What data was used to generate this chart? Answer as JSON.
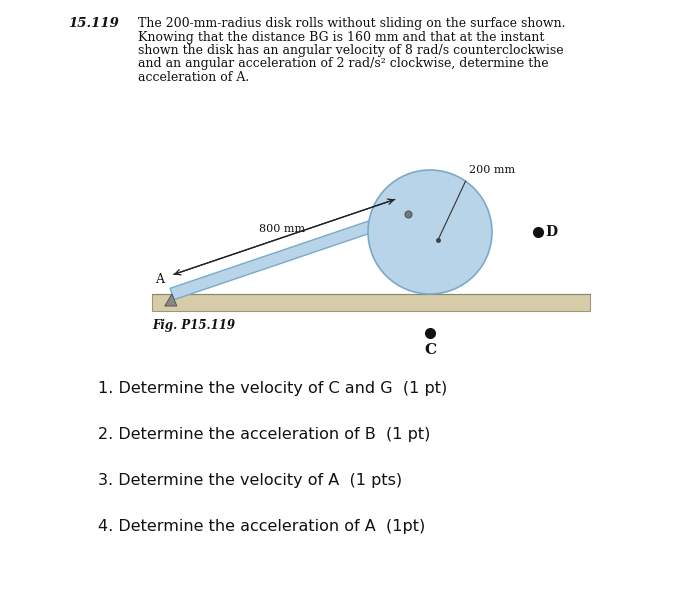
{
  "bg_color": "#ffffff",
  "fig_width": 7.0,
  "fig_height": 5.96,
  "problem_number": "15.119",
  "problem_text_lines": [
    "The 200-mm-radius disk rolls without sliding on the surface shown.",
    "Knowing that the distance BG is 160 mm and that at the instant",
    "shown the disk has an angular velocity of 8 rad/s counterclockwise",
    "and an angular acceleration of 2 rad/s² clockwise, determine the",
    "acceleration of A."
  ],
  "fig_label": "Fig. P15.119",
  "questions": [
    "1. Determine the velocity of C and G  (1 pt)",
    "2. Determine the acceleration of B  (1 pt)",
    "3. Determine the velocity of A  (1 pts)",
    "4. Determine the acceleration of A  (1pt)"
  ],
  "disk_color": "#b8d4e8",
  "disk_edge_color": "#7aaac8",
  "rod_color": "#b8d4e8",
  "rod_edge_color": "#7aaac8",
  "ground_color": "#d8cba8",
  "ground_edge_color": "#b0a070",
  "dot_color": "#111111"
}
